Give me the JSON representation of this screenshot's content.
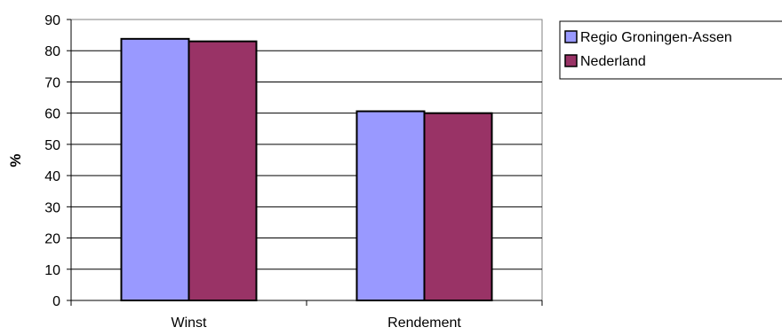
{
  "chart_data": {
    "type": "bar",
    "categories": [
      "Winst",
      "Rendement"
    ],
    "series": [
      {
        "name": "Regio Groningen-Assen",
        "values": [
          83.8,
          60.6
        ],
        "color": "#9999ff"
      },
      {
        "name": "Nederland",
        "values": [
          83.0,
          60.0
        ],
        "color": "#993366"
      }
    ],
    "xlabel": "",
    "ylabel": "%",
    "ylim": [
      0,
      90
    ],
    "yticks": [
      0,
      10,
      20,
      30,
      40,
      50,
      60,
      70,
      80,
      90
    ],
    "grid": true,
    "legend_position": "right"
  }
}
